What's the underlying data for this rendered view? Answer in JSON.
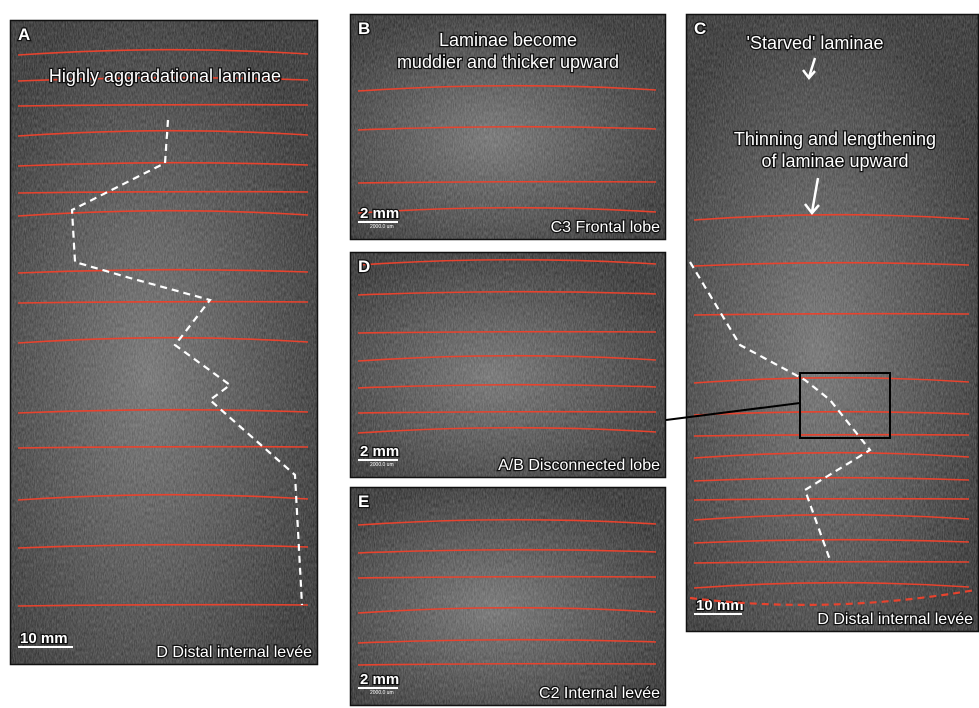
{
  "panels": [
    {
      "letter": "A",
      "annotations": [
        [
          "Highly aggradational laminae"
        ]
      ],
      "scale": "10 mm",
      "caption": "D Distal internal levée"
    },
    {
      "letter": "B",
      "annotations": [
        [
          "Laminae become",
          "muddier and thicker upward"
        ]
      ],
      "scale": "2 mm",
      "scale_detail": "2000.0 um",
      "caption": "C3 Frontal lobe"
    },
    {
      "letter": "D",
      "annotations": [],
      "scale": "2 mm",
      "scale_detail": "2000.0 um",
      "caption": "A/B Disconnected lobe"
    },
    {
      "letter": "E",
      "annotations": [],
      "scale": "2 mm",
      "scale_detail": "2000.0 um",
      "caption": "C2 Internal levée"
    },
    {
      "letter": "C",
      "annotations": [
        [
          "'Starved' laminae"
        ],
        [
          "Thinning and lengthening",
          "of laminae upward"
        ]
      ],
      "scale": "10 mm",
      "caption": "D Distal internal levée"
    }
  ]
}
